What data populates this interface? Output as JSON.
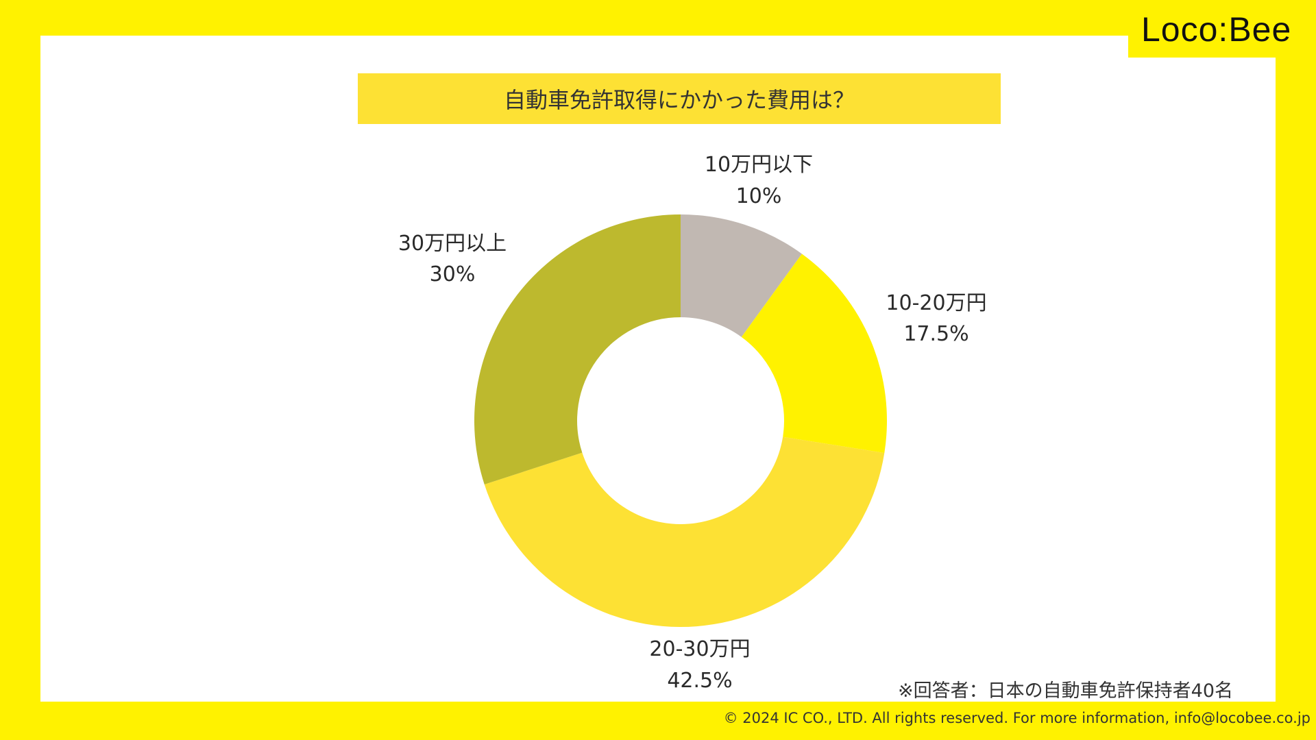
{
  "brand": {
    "logo_text": "Loco:Bee"
  },
  "note": "※回答者：日本の自動車免許保持者40名",
  "copyright": "© 2024 IC CO., LTD. All rights reserved. For more information, info@locobee.co.jp",
  "chart_data": {
    "type": "pie",
    "style": "donut",
    "title": "自動車免許取得にかかった費用は？",
    "slices": [
      {
        "label": "10万円以下",
        "value": 10,
        "value_label": "10%",
        "color": "#c1b8b2"
      },
      {
        "label": "10-20万円",
        "value": 17.5,
        "value_label": "17.5%",
        "color": "#fff200"
      },
      {
        "label": "20-30万円",
        "value": 42.5,
        "value_label": "42.5%",
        "color": "#fde134"
      },
      {
        "label": "30万円以上",
        "value": 30,
        "value_label": "30%",
        "color": "#bdb92e"
      }
    ],
    "start_angle": "12 o'clock",
    "direction": "clockwise"
  }
}
